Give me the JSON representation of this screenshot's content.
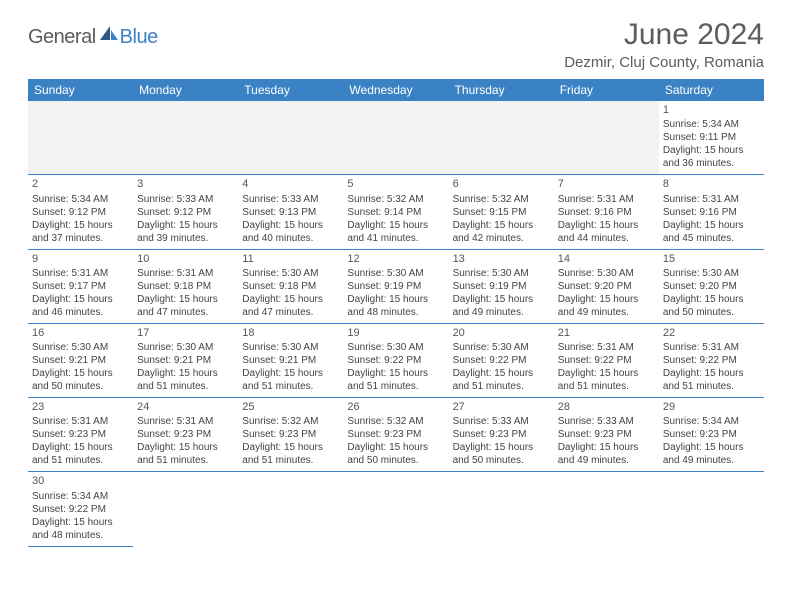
{
  "brand": {
    "part1": "General",
    "part2": "Blue"
  },
  "title": "June 2024",
  "location": "Dezmir, Cluj County, Romania",
  "colors": {
    "header_bg": "#3b82c4",
    "header_fg": "#ffffff",
    "text": "#444444",
    "title": "#5c5c5c",
    "blank_bg": "#f2f2f2",
    "rule": "#3b82c4"
  },
  "weekdays": [
    "Sunday",
    "Monday",
    "Tuesday",
    "Wednesday",
    "Thursday",
    "Friday",
    "Saturday"
  ],
  "first_weekday_index": 6,
  "days": [
    {
      "n": 1,
      "sunrise": "5:34 AM",
      "sunset": "9:11 PM",
      "dl_h": 15,
      "dl_m": 36
    },
    {
      "n": 2,
      "sunrise": "5:34 AM",
      "sunset": "9:12 PM",
      "dl_h": 15,
      "dl_m": 37
    },
    {
      "n": 3,
      "sunrise": "5:33 AM",
      "sunset": "9:12 PM",
      "dl_h": 15,
      "dl_m": 39
    },
    {
      "n": 4,
      "sunrise": "5:33 AM",
      "sunset": "9:13 PM",
      "dl_h": 15,
      "dl_m": 40
    },
    {
      "n": 5,
      "sunrise": "5:32 AM",
      "sunset": "9:14 PM",
      "dl_h": 15,
      "dl_m": 41
    },
    {
      "n": 6,
      "sunrise": "5:32 AM",
      "sunset": "9:15 PM",
      "dl_h": 15,
      "dl_m": 42
    },
    {
      "n": 7,
      "sunrise": "5:31 AM",
      "sunset": "9:16 PM",
      "dl_h": 15,
      "dl_m": 44
    },
    {
      "n": 8,
      "sunrise": "5:31 AM",
      "sunset": "9:16 PM",
      "dl_h": 15,
      "dl_m": 45
    },
    {
      "n": 9,
      "sunrise": "5:31 AM",
      "sunset": "9:17 PM",
      "dl_h": 15,
      "dl_m": 46
    },
    {
      "n": 10,
      "sunrise": "5:31 AM",
      "sunset": "9:18 PM",
      "dl_h": 15,
      "dl_m": 47
    },
    {
      "n": 11,
      "sunrise": "5:30 AM",
      "sunset": "9:18 PM",
      "dl_h": 15,
      "dl_m": 47
    },
    {
      "n": 12,
      "sunrise": "5:30 AM",
      "sunset": "9:19 PM",
      "dl_h": 15,
      "dl_m": 48
    },
    {
      "n": 13,
      "sunrise": "5:30 AM",
      "sunset": "9:19 PM",
      "dl_h": 15,
      "dl_m": 49
    },
    {
      "n": 14,
      "sunrise": "5:30 AM",
      "sunset": "9:20 PM",
      "dl_h": 15,
      "dl_m": 49
    },
    {
      "n": 15,
      "sunrise": "5:30 AM",
      "sunset": "9:20 PM",
      "dl_h": 15,
      "dl_m": 50
    },
    {
      "n": 16,
      "sunrise": "5:30 AM",
      "sunset": "9:21 PM",
      "dl_h": 15,
      "dl_m": 50
    },
    {
      "n": 17,
      "sunrise": "5:30 AM",
      "sunset": "9:21 PM",
      "dl_h": 15,
      "dl_m": 51
    },
    {
      "n": 18,
      "sunrise": "5:30 AM",
      "sunset": "9:21 PM",
      "dl_h": 15,
      "dl_m": 51
    },
    {
      "n": 19,
      "sunrise": "5:30 AM",
      "sunset": "9:22 PM",
      "dl_h": 15,
      "dl_m": 51
    },
    {
      "n": 20,
      "sunrise": "5:30 AM",
      "sunset": "9:22 PM",
      "dl_h": 15,
      "dl_m": 51
    },
    {
      "n": 21,
      "sunrise": "5:31 AM",
      "sunset": "9:22 PM",
      "dl_h": 15,
      "dl_m": 51
    },
    {
      "n": 22,
      "sunrise": "5:31 AM",
      "sunset": "9:22 PM",
      "dl_h": 15,
      "dl_m": 51
    },
    {
      "n": 23,
      "sunrise": "5:31 AM",
      "sunset": "9:23 PM",
      "dl_h": 15,
      "dl_m": 51
    },
    {
      "n": 24,
      "sunrise": "5:31 AM",
      "sunset": "9:23 PM",
      "dl_h": 15,
      "dl_m": 51
    },
    {
      "n": 25,
      "sunrise": "5:32 AM",
      "sunset": "9:23 PM",
      "dl_h": 15,
      "dl_m": 51
    },
    {
      "n": 26,
      "sunrise": "5:32 AM",
      "sunset": "9:23 PM",
      "dl_h": 15,
      "dl_m": 50
    },
    {
      "n": 27,
      "sunrise": "5:33 AM",
      "sunset": "9:23 PM",
      "dl_h": 15,
      "dl_m": 50
    },
    {
      "n": 28,
      "sunrise": "5:33 AM",
      "sunset": "9:23 PM",
      "dl_h": 15,
      "dl_m": 49
    },
    {
      "n": 29,
      "sunrise": "5:34 AM",
      "sunset": "9:23 PM",
      "dl_h": 15,
      "dl_m": 49
    },
    {
      "n": 30,
      "sunrise": "5:34 AM",
      "sunset": "9:22 PM",
      "dl_h": 15,
      "dl_m": 48
    }
  ],
  "labels": {
    "sunrise": "Sunrise:",
    "sunset": "Sunset:",
    "daylight_prefix": "Daylight:",
    "hours_word": "hours",
    "and_word": "and",
    "minutes_word": "minutes."
  }
}
